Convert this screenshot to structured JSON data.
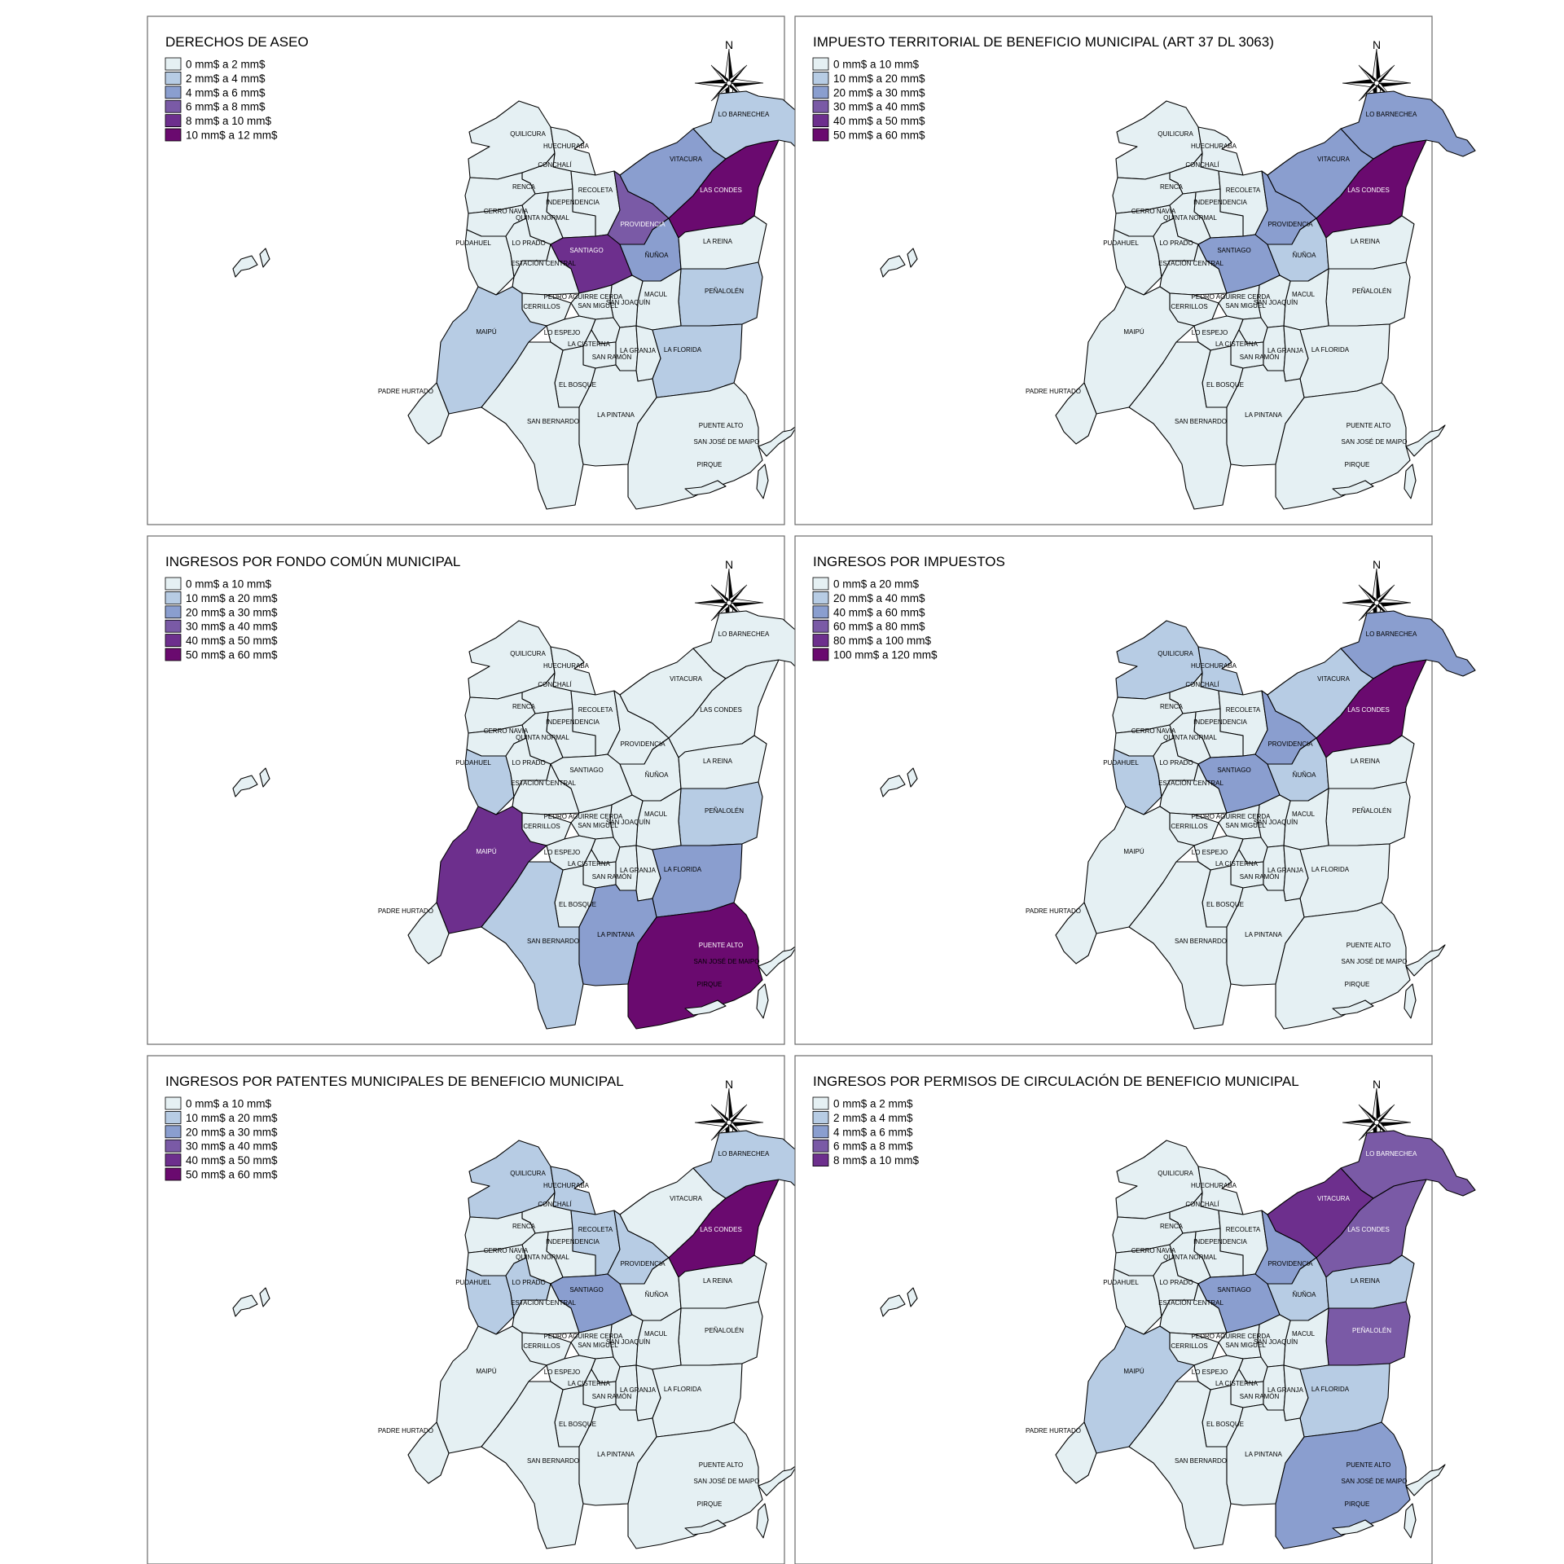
{
  "palette": [
    "#e5f0f3",
    "#b7cce4",
    "#8a9ecf",
    "#7a5aa6",
    "#6d2f8d",
    "#6a0a6f"
  ],
  "north_label": "N",
  "comunas": [
    "QUILICURA",
    "HUECHURABA",
    "CONCHALÍ",
    "RENCA",
    "RECOLETA",
    "INDEPENDENCIA",
    "CERRO NAVIA",
    "QUINTA NORMAL",
    "PUDAHUEL",
    "LO PRADO",
    "SANTIAGO",
    "ESTACIÓN CENTRAL",
    "PROVIDENCIA",
    "ÑUÑOA",
    "VITACURA",
    "LAS CONDES",
    "LO BARNECHEA",
    "LA REINA",
    "PEÑALOLÉN",
    "MACUL",
    "SAN JOAQUÍN",
    "PEDRO AGUIRRE CERDA",
    "CERRILLOS",
    "SAN MIGUEL",
    "MAIPÚ",
    "LO ESPEJO",
    "LA CISTERNA",
    "SAN RAMÓN",
    "LA GRANJA",
    "LA FLORIDA",
    "EL BOSQUE",
    "PADRE HURTADO",
    "SAN BERNARDO",
    "LA PINTANA",
    "PUENTE ALTO",
    "PIRQUE",
    "SAN JOSÉ DE MAIPO"
  ],
  "maps": [
    {
      "title": "DERECHOS DE ASEO",
      "legend": [
        "0 mm$ a 2 mm$",
        "2 mm$ a 4 mm$",
        "4 mm$ a 6 mm$",
        "6 mm$ a 8 mm$",
        "8 mm$ a 10 mm$",
        "10 mm$ a 12 mm$"
      ],
      "classes": {
        "LO BARNECHEA": 1,
        "VITACURA": 2,
        "LAS CONDES": 5,
        "PROVIDENCIA": 3,
        "SANTIAGO": 4,
        "ÑUÑOA": 2,
        "PEÑALOLÉN": 1,
        "LA FLORIDA": 1,
        "MAIPÚ": 1
      }
    },
    {
      "title": "IMPUESTO TERRITORIAL DE BENEFICIO MUNICIPAL (ART 37 DL 3063)",
      "legend": [
        "0 mm$ a 10 mm$",
        "10 mm$ a 20 mm$",
        "20 mm$ a 30 mm$",
        "30 mm$ a 40 mm$",
        "40 mm$ a 50 mm$",
        "50 mm$ a 60 mm$"
      ],
      "classes": {
        "LO BARNECHEA": 2,
        "VITACURA": 2,
        "LAS CONDES": 5,
        "PROVIDENCIA": 2,
        "SANTIAGO": 2,
        "ÑUÑOA": 1
      }
    },
    {
      "title": "INGRESOS POR FONDO COMÚN MUNICIPAL",
      "legend": [
        "0 mm$ a 10 mm$",
        "10 mm$ a 20 mm$",
        "20 mm$ a 30 mm$",
        "30 mm$ a 40 mm$",
        "40 mm$ a 50 mm$",
        "50 mm$ a 60 mm$"
      ],
      "classes": {
        "MAIPÚ": 4,
        "PUENTE ALTO": 5,
        "LA FLORIDA": 2,
        "LA PINTANA": 2,
        "SAN BERNARDO": 1,
        "PEÑALOLÉN": 1,
        "PUDAHUEL": 1
      }
    },
    {
      "title": "INGRESOS POR IMPUESTOS",
      "legend": [
        "0 mm$ a 20 mm$",
        "20 mm$ a 40 mm$",
        "40 mm$ a 60 mm$",
        "60 mm$ a 80 mm$",
        "80 mm$ a 100 mm$",
        "100 mm$ a 120 mm$"
      ],
      "classes": {
        "LAS CONDES": 5,
        "LO BARNECHEA": 2,
        "PROVIDENCIA": 2,
        "SANTIAGO": 2,
        "VITACURA": 1,
        "ÑUÑOA": 1,
        "QUILICURA": 1,
        "HUECHURABA": 1,
        "PUDAHUEL": 1
      }
    },
    {
      "title": "INGRESOS POR PATENTES MUNICIPALES DE BENEFICIO MUNICIPAL",
      "legend": [
        "0 mm$ a 10 mm$",
        "10 mm$ a 20 mm$",
        "20 mm$ a 30 mm$",
        "30 mm$ a 40 mm$",
        "40 mm$ a 50 mm$",
        "50 mm$ a 60 mm$"
      ],
      "classes": {
        "LAS CONDES": 5,
        "SANTIAGO": 2,
        "QUILICURA": 1,
        "HUECHURABA": 1,
        "RECOLETA": 1,
        "PROVIDENCIA": 1,
        "LO BARNECHEA": 1,
        "PUDAHUEL": 1,
        "LO PRADO": 1
      }
    },
    {
      "title": "INGRESOS POR PERMISOS DE CIRCULACIÓN DE BENEFICIO MUNICIPAL",
      "legend": [
        "0 mm$ a 2 mm$",
        "2 mm$ a 4 mm$",
        "4 mm$ a 6 mm$",
        "6 mm$ a 8 mm$",
        "8 mm$ a 10 mm$"
      ],
      "classes": {
        "VITACURA": 4,
        "LAS CONDES": 3,
        "LO BARNECHEA": 3,
        "PEÑALOLÉN": 3,
        "PROVIDENCIA": 2,
        "SANTIAGO": 2,
        "PUENTE ALTO": 2,
        "ÑUÑOA": 1,
        "LA REINA": 1,
        "LA FLORIDA": 1,
        "MAIPÚ": 1
      }
    }
  ]
}
